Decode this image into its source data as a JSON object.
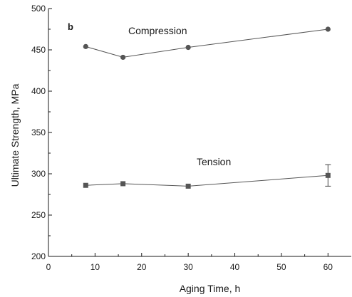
{
  "chart_data": {
    "type": "line",
    "panel_label": "b",
    "xlabel": "Aging Time, h",
    "ylabel": "Ultimate Strength, MPa",
    "xlim": [
      0,
      65
    ],
    "ylim": [
      200,
      500
    ],
    "xticks": [
      0,
      10,
      20,
      30,
      40,
      50,
      60
    ],
    "yticks": [
      200,
      250,
      300,
      350,
      400,
      450,
      500
    ],
    "x": [
      8,
      16,
      30,
      60
    ],
    "series": [
      {
        "label": "Compression",
        "marker": "circle",
        "color": "#555555",
        "values": [
          454,
          441,
          453,
          475
        ],
        "error": [
          null,
          null,
          null,
          null
        ]
      },
      {
        "label": "Tension",
        "marker": "square",
        "color": "#555555",
        "values": [
          286,
          288,
          285,
          298
        ],
        "error": [
          null,
          null,
          null,
          13
        ]
      }
    ],
    "grid": false,
    "legend": "none"
  }
}
